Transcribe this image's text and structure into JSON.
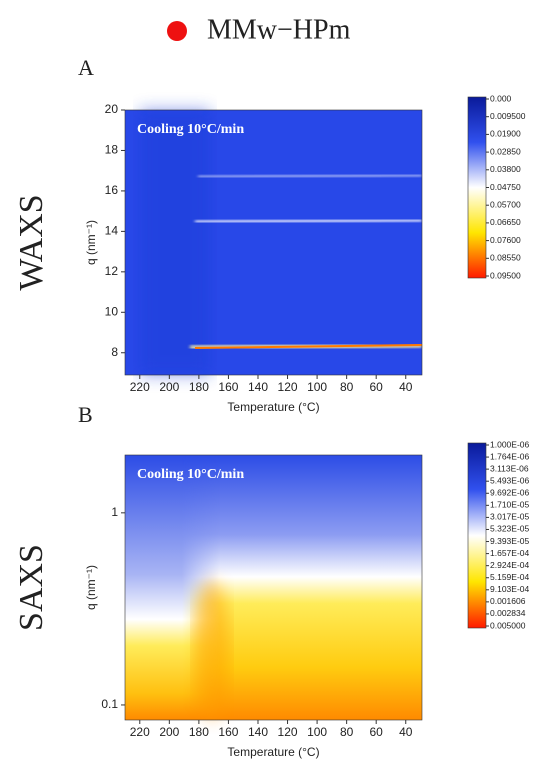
{
  "legend": {
    "label": "MMw−HPm",
    "color": "#ee1111"
  },
  "chart_data": [
    {
      "type": "heatmap",
      "panel": "A",
      "side_label": "WAXS",
      "annotation": "Cooling 10°C/min",
      "xlabel": "Temperature (°C)",
      "ylabel": "q (nm⁻¹)",
      "xlim": [
        230,
        29
      ],
      "xticks": [
        220,
        200,
        180,
        160,
        140,
        120,
        100,
        80,
        60,
        40
      ],
      "ylim": [
        6.9,
        20
      ],
      "yticks": [
        8,
        10,
        12,
        14,
        16,
        18,
        20
      ],
      "log_y": false,
      "colorbar": {
        "colors": [
          "#0a1a9a",
          "#3050ee",
          "#ffffff",
          "#ffe600",
          "#ff1a00"
        ],
        "ticks": [
          {
            "value": 0,
            "label": "0.000"
          },
          {
            "value": 0.0095,
            "label": "0.009500"
          },
          {
            "value": 0.019,
            "label": "0.01900"
          },
          {
            "value": 0.0285,
            "label": "0.02850"
          },
          {
            "value": 0.038,
            "label": "0.03800"
          },
          {
            "value": 0.0475,
            "label": "0.04750"
          },
          {
            "value": 0.057,
            "label": "0.05700"
          },
          {
            "value": 0.0665,
            "label": "0.06650"
          },
          {
            "value": 0.076,
            "label": "0.07600"
          },
          {
            "value": 0.0855,
            "label": "0.08550"
          },
          {
            "value": 0.095,
            "label": "0.09500"
          }
        ]
      }
    },
    {
      "type": "heatmap",
      "panel": "B",
      "side_label": "SAXS",
      "annotation": "Cooling 10°C/min",
      "xlabel": "Temperature (°C)",
      "ylabel": "q (nm⁻¹)",
      "xlim": [
        230,
        29
      ],
      "xticks": [
        220,
        200,
        180,
        160,
        140,
        120,
        100,
        80,
        60,
        40
      ],
      "ylim": [
        0.0835,
        2.0
      ],
      "yticks": [
        0.1,
        1
      ],
      "log_y": true,
      "colorbar": {
        "colors": [
          "#0a1a9a",
          "#3050ee",
          "#ffffff",
          "#ffe600",
          "#ff1a00"
        ],
        "ticks": [
          {
            "value": 1e-06,
            "label": "1.000E-06"
          },
          {
            "value": 1.764e-06,
            "label": "1.764E-06"
          },
          {
            "value": 3.113e-06,
            "label": "3.113E-06"
          },
          {
            "value": 5.493e-06,
            "label": "5.493E-06"
          },
          {
            "value": 9.692e-06,
            "label": "9.692E-06"
          },
          {
            "value": 1.71e-05,
            "label": "1.710E-05"
          },
          {
            "value": 3.017e-05,
            "label": "3.017E-05"
          },
          {
            "value": 5.323e-05,
            "label": "5.323E-05"
          },
          {
            "value": 9.393e-05,
            "label": "9.393E-05"
          },
          {
            "value": 0.0001657,
            "label": "1.657E-04"
          },
          {
            "value": 0.0002924,
            "label": "2.924E-04"
          },
          {
            "value": 0.0005159,
            "label": "5.159E-04"
          },
          {
            "value": 0.0009103,
            "label": "9.103E-04"
          },
          {
            "value": 0.001606,
            "label": "0.001606"
          },
          {
            "value": 0.002834,
            "label": "0.002834"
          },
          {
            "value": 0.005,
            "label": "0.005000"
          }
        ]
      }
    }
  ]
}
